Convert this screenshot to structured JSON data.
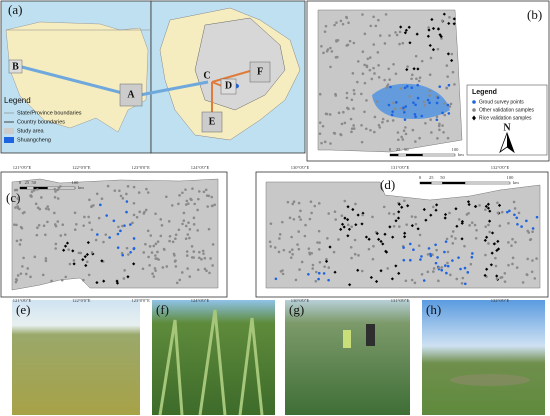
{
  "panels": {
    "a": {
      "label": "(a)",
      "boxes": [
        "A",
        "B",
        "C",
        "D",
        "E",
        "F"
      ],
      "legend": {
        "title": "Legend",
        "items": [
          "State/Province boundaries",
          "Country boundaries",
          "Study area",
          "Shuangcheng"
        ]
      }
    },
    "b": {
      "label": "(b)",
      "scale": [
        "0",
        "25",
        "50",
        "100",
        "km"
      ],
      "legend": {
        "title": "Legend",
        "items": [
          "Groud survey points",
          "Other validation samples",
          "Rice validation samples"
        ],
        "north": "N"
      }
    },
    "c": {
      "label": "(c)",
      "scale": [
        "0",
        "25",
        "50",
        "100",
        "km"
      ],
      "xticks": [
        "121°0'0\"E",
        "122°0'0\"E",
        "123°0'0\"E",
        "124°0'0\"E"
      ]
    },
    "d": {
      "label": "(d)",
      "scale": [
        "0",
        "25",
        "50",
        "100",
        "km"
      ],
      "xticks": [
        "130°0'0\"E",
        "131°0'0\"E",
        "132°0'0\"E"
      ]
    },
    "e": {
      "label": "(e)"
    },
    "f": {
      "label": "(f)"
    },
    "g": {
      "label": "(g)"
    },
    "h": {
      "label": "(h)"
    }
  }
}
